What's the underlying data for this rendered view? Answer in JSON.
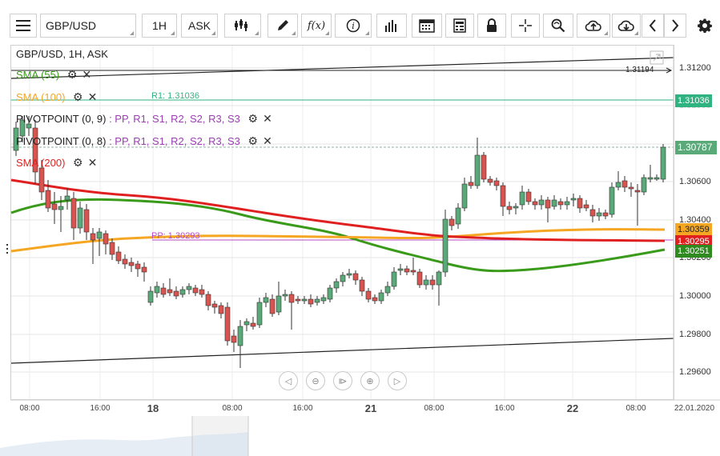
{
  "toolbar": {
    "menu_icon": "hamburger-icon",
    "symbol": "GBP/USD",
    "timeframe": "1H",
    "price_type": "ASK",
    "fx_label": "f(x)",
    "tools": [
      "candlestick-icon",
      "pencil-icon",
      "function-icon",
      "info-icon",
      "bars-icon",
      "calendar-icon",
      "report-icon",
      "lock-icon",
      "crosshair-icon",
      "zoom-icon",
      "cloud-upload-icon",
      "cloud-download-icon",
      "arrow-left-icon",
      "arrow-right-icon",
      "gear-icon"
    ]
  },
  "chart": {
    "title": "GBP/USD, 1H, ASK",
    "indicators": [
      {
        "label": "SMA (55)",
        "color": "#3a9a1a"
      },
      {
        "label": "SMA (100)",
        "color": "#f5a623"
      },
      {
        "label": "PIVOTPOINT (0, 9)",
        "suffix": ": PP, R1, S1, R2, S2, R3, S3"
      },
      {
        "label": "PIVOTPOINT (0, 8)",
        "suffix": ": PP, R1, S1, R2, S2, R3, S3"
      },
      {
        "label": "SMA (200)",
        "color": "#e02020"
      }
    ],
    "annotations": {
      "r1": "R1: 1.31036",
      "pp": "PP: 1.30293",
      "trend_value": "1.31194"
    },
    "price_labels": [
      {
        "value": "1.31036",
        "color": "#2fb380",
        "text_color": "#fff"
      },
      {
        "value": "1.30787",
        "color": "#5aa978",
        "text_color": "#fff"
      },
      {
        "value": "1.30359",
        "color": "#f5a623",
        "text_color": "#222"
      },
      {
        "value": "1.30295",
        "color": "#e02020",
        "text_color": "#fff"
      },
      {
        "value": "1.30251",
        "color": "#2f8a1f",
        "text_color": "#fff"
      }
    ],
    "y_ticks": [
      "1.31200",
      "1.31000",
      "1.30600",
      "1.30400",
      "1.30200",
      "1.30000",
      "1.29800",
      "1.29600"
    ],
    "x_ticks": [
      "08:00",
      "16:00",
      "18",
      "08:00",
      "16:00",
      "21",
      "08:00",
      "16:00",
      "22",
      "08:00",
      "22.01.2020"
    ],
    "colors": {
      "bull": "#5aa978",
      "bear": "#d9534f"
    }
  }
}
